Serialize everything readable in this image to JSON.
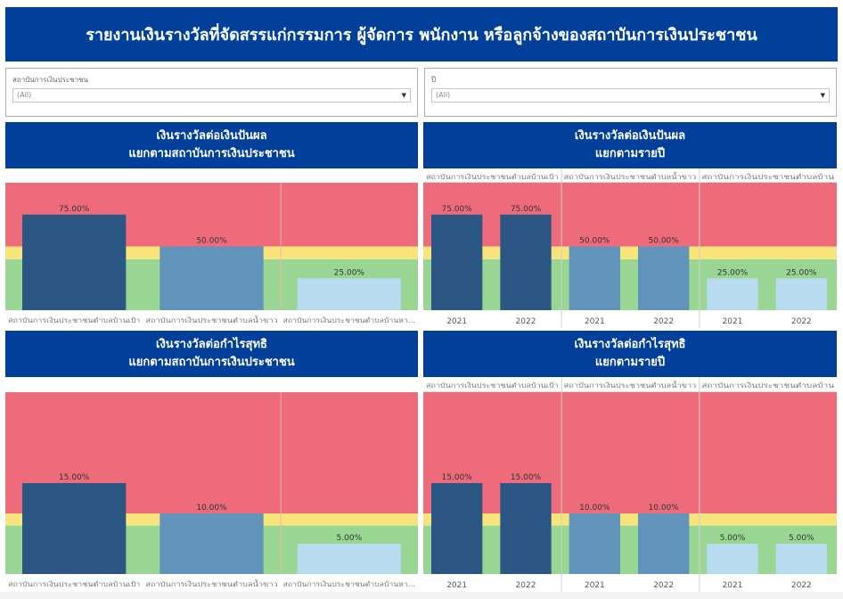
{
  "header": {
    "title": "รายงานเงินรางวัลที่จัดสรรแก่กรรมการ ผู้จัดการ พนักงาน หรือลูกจ้างของสถาบันการเงินประชาชน"
  },
  "filters": [
    {
      "label": "สถาบันการเงินประชาชน",
      "value": "(All)"
    },
    {
      "label": "ปี",
      "value": "(All)"
    }
  ],
  "colors": {
    "title_bg": "#01409a",
    "band_red": "#ee6b7b",
    "band_yellow": "#f7e47a",
    "band_green": "#99d593",
    "bar_dark": "#2c5784",
    "bar_mid": "#6193bb",
    "bar_light": "#b9dbf0"
  },
  "chart_data": [
    {
      "id": "dividend-by-institution",
      "type": "bar",
      "title": "เงินรางวัลต่อเงินปันผล",
      "subtitle": "แยกตามสถาบันการเงินประชาชน",
      "categories": [
        "สถาบันการเงินประชาชนตำบลบ้านเป้า",
        "สถาบันการเงินประชาชนตำบลน้ำขาว",
        "สถาบันการเงินประชาชนตำบลบ้านหา..."
      ],
      "values": [
        75,
        50,
        25
      ],
      "labels": [
        "75.00%",
        "50.00%",
        "25.00%"
      ],
      "ylim": [
        0,
        100
      ],
      "bands": [
        {
          "from": 0,
          "to": 40,
          "color": "green"
        },
        {
          "from": 40,
          "to": 50,
          "color": "yellow"
        },
        {
          "from": 50,
          "to": 100,
          "color": "red"
        }
      ],
      "xlabel": "",
      "ylabel": "",
      "grid": false
    },
    {
      "id": "dividend-by-year",
      "type": "bar",
      "title": "เงินรางวัลต่อเงินปันผล",
      "subtitle": "แยกตามรายปี",
      "groups": [
        "สถาบันการเงินประชาชนตำบลบ้านเป้า",
        "สถาบันการเงินประชาชนตำบลน้ำขาว",
        "สถาบันการเงินประชาชนตำบลบ้าน"
      ],
      "categories": [
        "2021",
        "2022"
      ],
      "series": [
        {
          "name": "สถาบันการเงินประชาชนตำบลบ้านเป้า",
          "values": [
            75,
            75
          ],
          "labels": [
            "75.00%",
            "75.00%"
          ]
        },
        {
          "name": "สถาบันการเงินประชาชนตำบลน้ำขาว",
          "values": [
            50,
            50
          ],
          "labels": [
            "50.00%",
            "50.00%"
          ]
        },
        {
          "name": "สถาบันการเงินประชาชนตำบลบ้าน",
          "values": [
            25,
            25
          ],
          "labels": [
            "25.00%",
            "25.00%"
          ]
        }
      ],
      "ylim": [
        0,
        100
      ],
      "bands": [
        {
          "from": 0,
          "to": 40,
          "color": "green"
        },
        {
          "from": 40,
          "to": 50,
          "color": "yellow"
        },
        {
          "from": 50,
          "to": 100,
          "color": "red"
        }
      ],
      "xlabel": "",
      "ylabel": "",
      "grid": false
    },
    {
      "id": "netprofit-by-institution",
      "type": "bar",
      "title": "เงินรางวัลต่อกำไรสุทธิ",
      "subtitle": "แยกตามสถาบันการเงินประชาชน",
      "categories": [
        "สถาบันการเงินประชาชนตำบลบ้านเป้า",
        "สถาบันการเงินประชาชนตำบลน้ำขาว",
        "สถาบันการเงินประชาชนตำบลบ้านหา..."
      ],
      "values": [
        15,
        10,
        5
      ],
      "labels": [
        "15.00%",
        "10.00%",
        "5.00%"
      ],
      "ylim": [
        0,
        30
      ],
      "bands": [
        {
          "from": 0,
          "to": 8,
          "color": "green"
        },
        {
          "from": 8,
          "to": 10,
          "color": "yellow"
        },
        {
          "from": 10,
          "to": 30,
          "color": "red"
        }
      ],
      "xlabel": "",
      "ylabel": "",
      "grid": false
    },
    {
      "id": "netprofit-by-year",
      "type": "bar",
      "title": "เงินรางวัลต่อกำไรสุทธิ",
      "subtitle": "แยกตามรายปี",
      "groups": [
        "สถาบันการเงินประชาชนตำบลบ้านเป้า",
        "สถาบันการเงินประชาชนตำบลน้ำขาว",
        "สถาบันการเงินประชาชนตำบลบ้าน"
      ],
      "categories": [
        "2021",
        "2022"
      ],
      "series": [
        {
          "name": "สถาบันการเงินประชาชนตำบลบ้านเป้า",
          "values": [
            15,
            15
          ],
          "labels": [
            "15.00%",
            "15.00%"
          ]
        },
        {
          "name": "สถาบันการเงินประชาชนตำบลน้ำขาว",
          "values": [
            10,
            10
          ],
          "labels": [
            "10.00%",
            "10.00%"
          ]
        },
        {
          "name": "สถาบันการเงินประชาชนตำบลบ้าน",
          "values": [
            5,
            5
          ],
          "labels": [
            "5.00%",
            "5.00%"
          ]
        }
      ],
      "ylim": [
        0,
        30
      ],
      "bands": [
        {
          "from": 0,
          "to": 8,
          "color": "green"
        },
        {
          "from": 8,
          "to": 10,
          "color": "yellow"
        },
        {
          "from": 10,
          "to": 30,
          "color": "red"
        }
      ],
      "xlabel": "",
      "ylabel": "",
      "grid": false
    }
  ]
}
